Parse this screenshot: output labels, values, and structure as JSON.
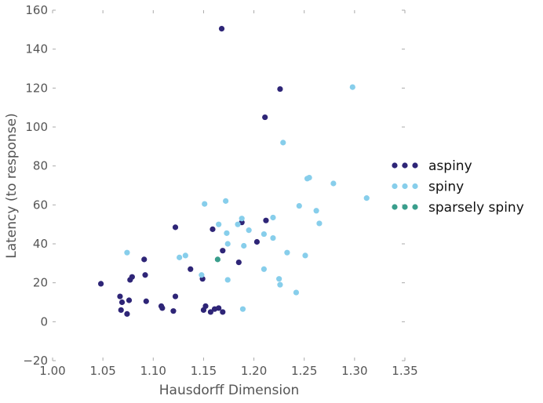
{
  "chart_data": {
    "type": "scatter",
    "title": "",
    "xlabel": "Hausdorff Dimension",
    "ylabel": "Latency (to response)",
    "xlim": [
      1.0,
      1.35
    ],
    "ylim": [
      -20,
      160
    ],
    "xticks": [
      1.0,
      1.05,
      1.1,
      1.15,
      1.2,
      1.25,
      1.3,
      1.35
    ],
    "xtick_labels": [
      "1.00",
      "1.05",
      "1.10",
      "1.15",
      "1.20",
      "1.25",
      "1.30",
      "1.35"
    ],
    "yticks": [
      -20,
      0,
      20,
      40,
      60,
      80,
      100,
      120,
      140,
      160
    ],
    "ytick_labels": [
      "−20",
      "0",
      "20",
      "40",
      "60",
      "80",
      "100",
      "120",
      "140",
      "160"
    ],
    "grid": false,
    "legend_position": "right",
    "series": [
      {
        "name": "aspiny",
        "color": "#2e2577",
        "points": [
          [
            1.168,
            150.5
          ],
          [
            1.226,
            119.5
          ],
          [
            1.211,
            105.0
          ],
          [
            1.048,
            19.5
          ],
          [
            1.067,
            13.0
          ],
          [
            1.069,
            10.0
          ],
          [
            1.068,
            6.0
          ],
          [
            1.074,
            4.0
          ],
          [
            1.076,
            11.0
          ],
          [
            1.077,
            21.5
          ],
          [
            1.079,
            23.0
          ],
          [
            1.091,
            32.0
          ],
          [
            1.092,
            24.0
          ],
          [
            1.093,
            10.5
          ],
          [
            1.108,
            8.0
          ],
          [
            1.109,
            7.0
          ],
          [
            1.12,
            5.5
          ],
          [
            1.122,
            13.0
          ],
          [
            1.122,
            48.5
          ],
          [
            1.137,
            27.0
          ],
          [
            1.149,
            22.0
          ],
          [
            1.15,
            6.0
          ],
          [
            1.152,
            8.0
          ],
          [
            1.157,
            5.0
          ],
          [
            1.159,
            47.5
          ],
          [
            1.161,
            6.5
          ],
          [
            1.165,
            7.0
          ],
          [
            1.169,
            36.5
          ],
          [
            1.169,
            5.0
          ],
          [
            1.185,
            30.5
          ],
          [
            1.188,
            51.0
          ],
          [
            1.203,
            41.0
          ],
          [
            1.212,
            52.0
          ]
        ]
      },
      {
        "name": "spiny",
        "color": "#87ceeb",
        "points": [
          [
            1.298,
            120.5
          ],
          [
            1.229,
            92.0
          ],
          [
            1.253,
            73.5
          ],
          [
            1.255,
            74.0
          ],
          [
            1.279,
            71.0
          ],
          [
            1.312,
            63.5
          ],
          [
            1.172,
            62.0
          ],
          [
            1.151,
            60.5
          ],
          [
            1.245,
            59.5
          ],
          [
            1.262,
            57.0
          ],
          [
            1.219,
            53.5
          ],
          [
            1.188,
            53.0
          ],
          [
            1.165,
            50.0
          ],
          [
            1.184,
            50.0
          ],
          [
            1.265,
            50.5
          ],
          [
            1.195,
            47.0
          ],
          [
            1.173,
            45.5
          ],
          [
            1.21,
            45.0
          ],
          [
            1.219,
            43.0
          ],
          [
            1.174,
            40.0
          ],
          [
            1.19,
            39.0
          ],
          [
            1.074,
            35.5
          ],
          [
            1.132,
            34.0
          ],
          [
            1.126,
            33.0
          ],
          [
            1.233,
            35.5
          ],
          [
            1.251,
            34.0
          ],
          [
            1.148,
            24.0
          ],
          [
            1.21,
            27.0
          ],
          [
            1.174,
            21.5
          ],
          [
            1.225,
            22.0
          ],
          [
            1.226,
            19.0
          ],
          [
            1.242,
            15.0
          ],
          [
            1.189,
            6.5
          ]
        ]
      },
      {
        "name": "sparsely spiny",
        "color": "#3a9e8c",
        "points": [
          [
            1.164,
            32.0
          ]
        ]
      }
    ]
  }
}
